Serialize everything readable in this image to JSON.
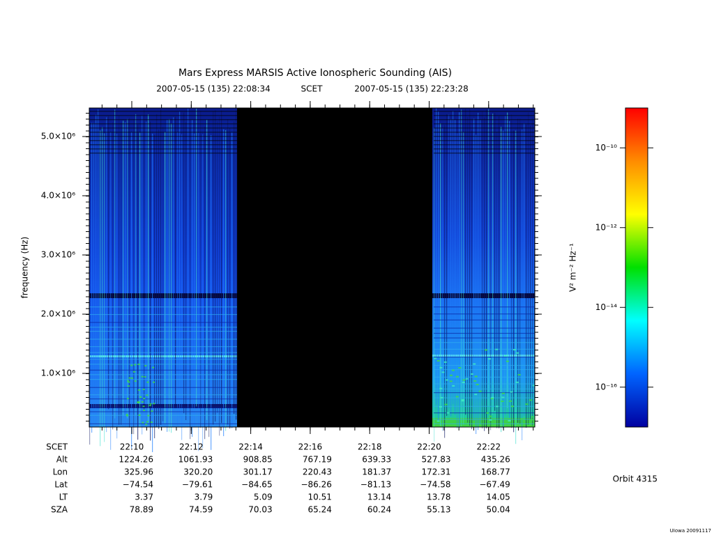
{
  "chart_data": {
    "type": "spectrogram",
    "title": "Mars Express MARSIS Active Ionospheric Sounding (AIS)",
    "subtitle_start": "2007-05-15 (135) 22:08:34",
    "subtitle_frame": "SCET",
    "subtitle_end": "2007-05-15 (135) 22:23:28",
    "y_label": "frequency (Hz)",
    "x_row_label": "SCET",
    "xticks": [
      "22:10",
      "22:12",
      "22:14",
      "22:16",
      "22:18",
      "22:20",
      "22:22"
    ],
    "ylim": [
      94000,
      5482000
    ],
    "yticks": [
      {
        "value": 1000000,
        "label": "1.0×10⁶"
      },
      {
        "value": 2000000,
        "label": "2.0×10⁶"
      },
      {
        "value": 3000000,
        "label": "3.0×10⁶"
      },
      {
        "value": 4000000,
        "label": "4.0×10⁶"
      },
      {
        "value": 5000000,
        "label": "5.0×10⁶"
      }
    ],
    "colorbar": {
      "label": "V² m⁻² Hz⁻¹",
      "log": true,
      "zlim": [
        1e-17,
        1e-09
      ],
      "zticks": [
        {
          "value": 1e-10,
          "label": "10⁻¹⁰"
        },
        {
          "value": 1e-12,
          "label": "10⁻¹²"
        },
        {
          "value": 1e-14,
          "label": "10⁻¹⁴"
        },
        {
          "value": 1e-16,
          "label": "10⁻¹⁶"
        }
      ],
      "colors": [
        "#ff0000",
        "#ff8c00",
        "#ffff00",
        "#00e000",
        "#00ffff",
        "#0064ff",
        "#0000a0"
      ]
    },
    "ephemeris": [
      {
        "label": "Alt",
        "values": [
          "1224.26",
          "1061.93",
          "908.85",
          "767.19",
          "639.33",
          "527.83",
          "435.26"
        ]
      },
      {
        "label": "Lon",
        "values": [
          "325.96",
          "320.20",
          "301.17",
          "220.43",
          "181.37",
          "172.31",
          "168.77"
        ]
      },
      {
        "label": "Lat",
        "values": [
          "−74.54",
          "−79.61",
          "−84.65",
          "−86.26",
          "−81.13",
          "−74.58",
          "−67.49"
        ]
      },
      {
        "label": "LT",
        "values": [
          "3.37",
          "3.79",
          "5.09",
          "10.51",
          "13.14",
          "13.78",
          "14.05"
        ]
      },
      {
        "label": "SZA",
        "values": [
          "78.89",
          "74.59",
          "70.03",
          "65.24",
          "60.24",
          "55.13",
          "50.04"
        ]
      }
    ],
    "orbit": "Orbit 4315",
    "credit": "UIowa 20091117"
  }
}
